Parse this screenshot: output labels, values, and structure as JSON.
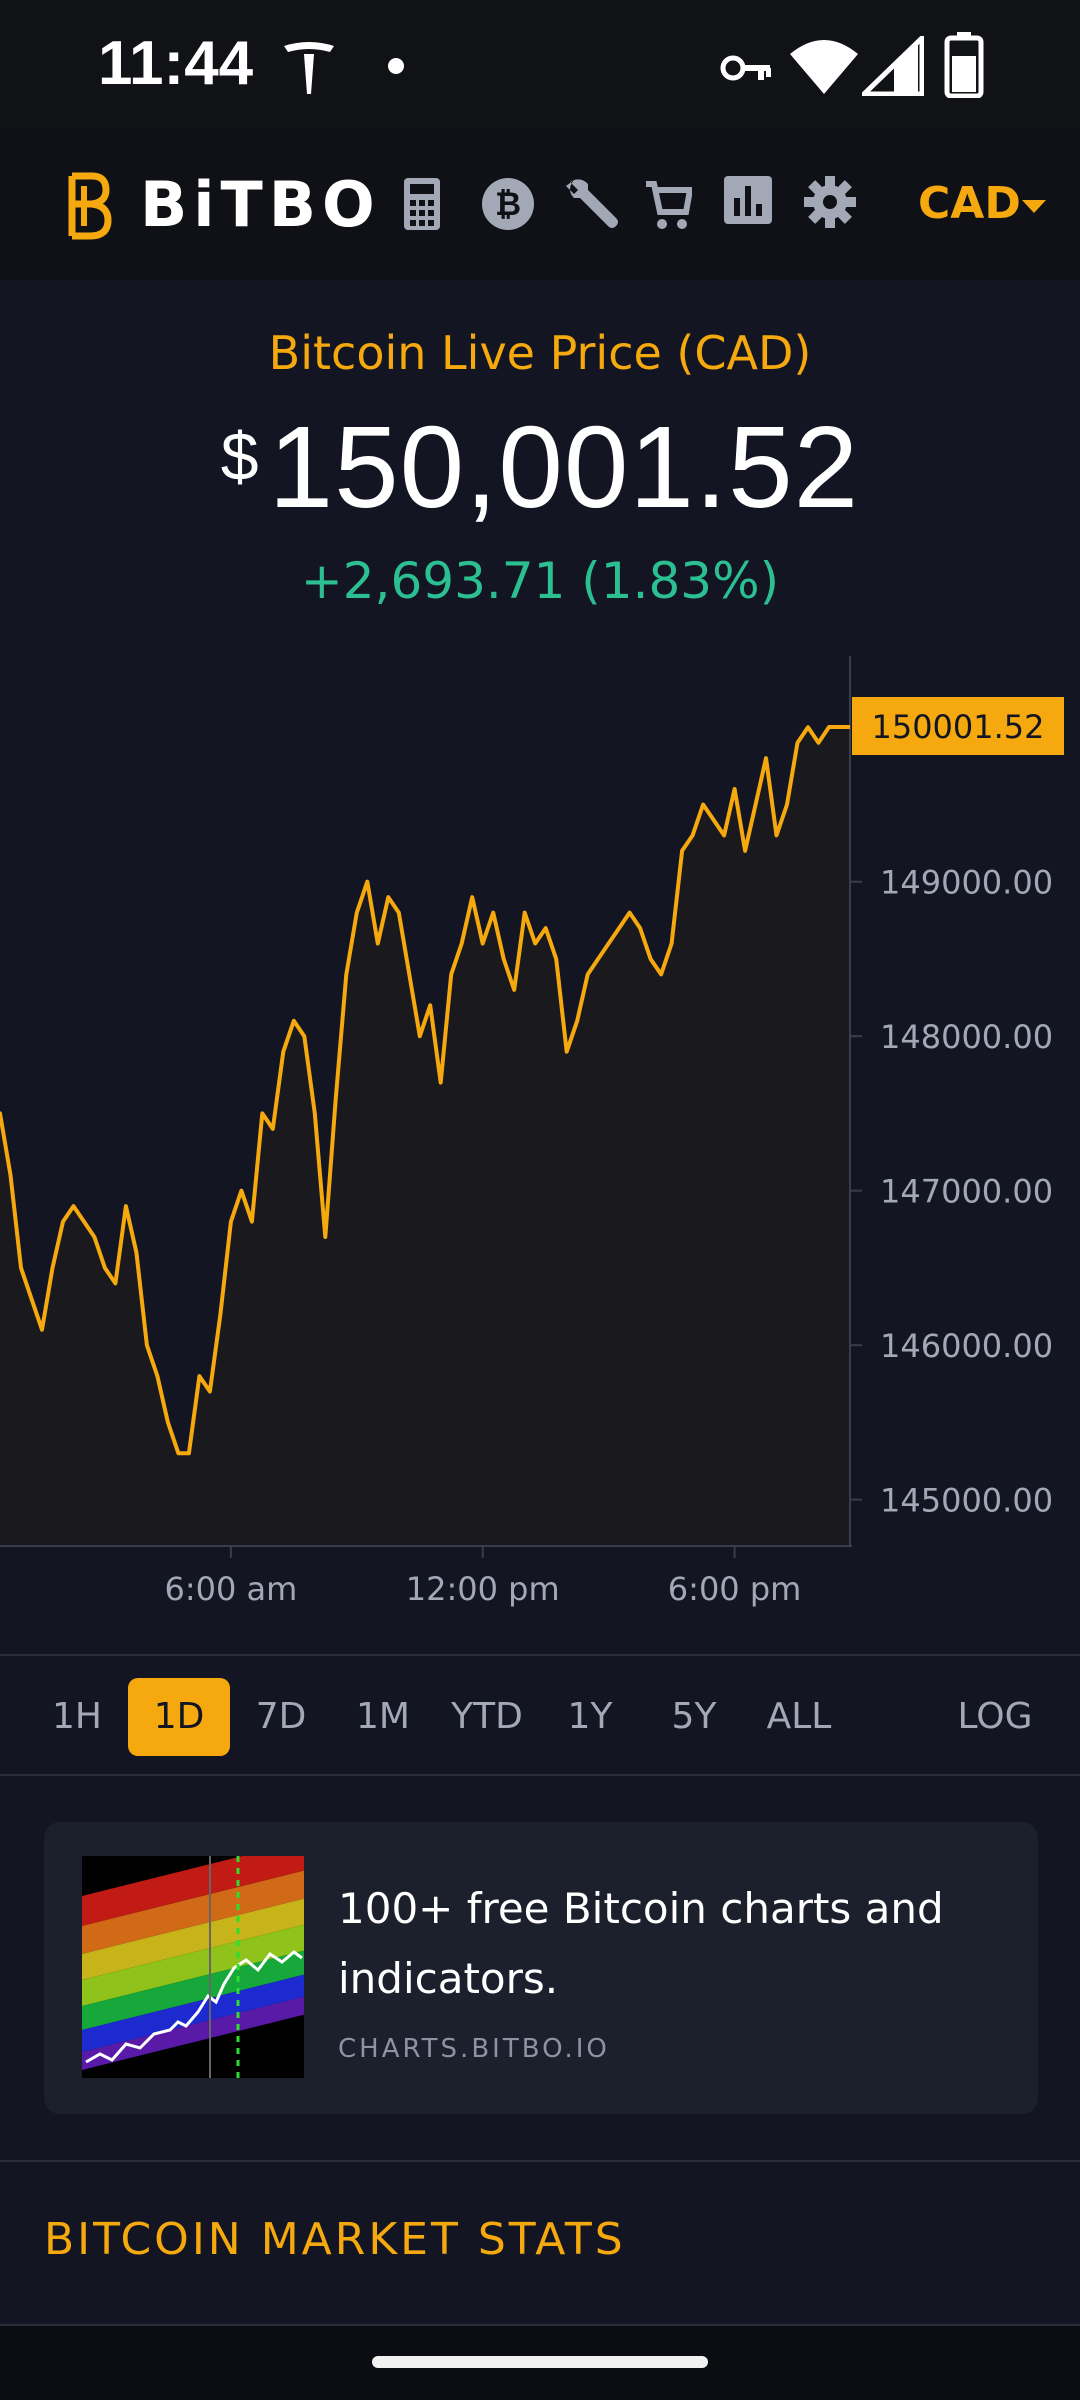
{
  "status_bar": {
    "time": "11:44",
    "icons": [
      "tesla-icon",
      "dot-icon",
      "key-icon",
      "wifi-icon",
      "signal-icon",
      "battery-icon"
    ]
  },
  "navbar": {
    "logo_text": "BiTBO",
    "icons": [
      "calculator-icon",
      "bitcoin-icon",
      "wrench-icon",
      "cart-icon",
      "bar-chart-icon",
      "gear-icon"
    ],
    "currency": "CAD"
  },
  "price": {
    "title": "Bitcoin Live Price (CAD)",
    "symbol": "$",
    "value": "150,001.52",
    "change": "+2,693.71 (1.83%)"
  },
  "chart_data": {
    "type": "line",
    "series": [
      {
        "x": [
          0,
          0.25,
          0.5,
          0.75,
          1,
          1.25,
          1.5,
          1.75,
          2,
          2.25,
          2.5,
          2.75,
          3,
          3.25,
          3.5,
          3.75,
          4,
          4.25,
          4.5,
          4.75,
          5,
          5.25,
          5.5,
          5.75,
          6,
          6.25,
          6.5,
          6.75,
          7,
          7.25,
          7.5,
          7.75,
          8,
          8.25,
          8.5,
          8.75,
          9,
          9.25,
          9.5,
          9.75,
          10,
          10.25,
          10.5,
          10.75,
          11,
          11.25,
          11.5,
          11.75,
          12,
          12.25,
          12.5,
          12.75,
          13,
          13.25,
          13.5,
          13.75,
          14,
          14.25,
          14.5,
          14.75,
          15,
          15.25,
          15.5,
          15.75,
          16,
          16.25,
          16.5,
          16.75,
          17,
          17.25,
          17.5,
          17.75,
          18,
          18.25,
          18.5,
          18.75,
          19,
          19.25,
          19.5,
          19.75,
          20,
          20.25
        ],
        "y": [
          147500,
          147100,
          146500,
          146300,
          146100,
          146500,
          146800,
          146900,
          146800,
          146700,
          146500,
          146400,
          146900,
          146600,
          146000,
          145800,
          145500,
          145300,
          145300,
          145800,
          145700,
          146200,
          146800,
          147000,
          146800,
          147500,
          147400,
          147900,
          148100,
          148000,
          147500,
          146700,
          147600,
          148400,
          148800,
          149000,
          148600,
          148900,
          148800,
          148400,
          148000,
          148200,
          147700,
          148400,
          148600,
          148900,
          148600,
          148800,
          148500,
          148300,
          148800,
          148600,
          148700,
          148500,
          147900,
          148100,
          148400,
          148500,
          148600,
          148700,
          148800,
          148700,
          148500,
          148400,
          148600,
          149200,
          149300,
          149500,
          149400,
          149300,
          149600,
          149200,
          149500,
          149800,
          149300,
          149500,
          149900,
          150000,
          149900,
          150001.52,
          150001.52,
          150001.52
        ]
      }
    ],
    "x_tick_labels": [
      "6:00 am",
      "12:00 pm",
      "6:00 pm"
    ],
    "x_tick_positions": [
      5.5,
      11.5,
      17.5
    ],
    "y_tick_labels": [
      "149000.00",
      "148000.00",
      "147000.00",
      "146000.00",
      "145000.00"
    ],
    "y_ticks": [
      149000,
      148000,
      147000,
      146000,
      145000
    ],
    "ylim": [
      144700,
      150500
    ],
    "xlim": [
      0,
      24
    ],
    "current_label": "150001.52",
    "line_color": "#f5a90f"
  },
  "time_ranges": {
    "buttons": [
      "1H",
      "1D",
      "7D",
      "1M",
      "YTD",
      "1Y",
      "5Y",
      "ALL"
    ],
    "active": "1D",
    "log_label": "LOG"
  },
  "promo": {
    "title": "100+ free Bitcoin charts and indicators.",
    "link": "CHARTS.BITBO.IO"
  },
  "section": {
    "title": "BITCOIN MARKET STATS"
  }
}
